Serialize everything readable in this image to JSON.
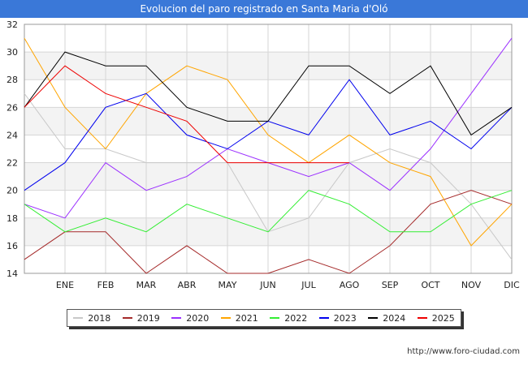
{
  "chart_data": {
    "type": "line",
    "title": "Evolucion del paro registrado en Santa Maria d'Oló",
    "categories": [
      "",
      "ENE",
      "FEB",
      "MAR",
      "ABR",
      "MAY",
      "JUN",
      "JUL",
      "AGO",
      "SEP",
      "OCT",
      "NOV",
      "DIC"
    ],
    "ylim": [
      14,
      32
    ],
    "yticks": [
      14,
      16,
      18,
      20,
      22,
      24,
      26,
      28,
      30,
      32
    ],
    "grid": true,
    "legend_position": "bottom",
    "series": [
      {
        "name": "2018",
        "color": "#c8c8c8",
        "values": [
          27,
          23,
          23,
          22,
          22,
          22,
          17,
          18,
          22,
          23,
          22,
          19,
          15
        ]
      },
      {
        "name": "2019",
        "color": "#a52a2a",
        "values": [
          15,
          17,
          17,
          14,
          16,
          14,
          14,
          15,
          14,
          16,
          19,
          20,
          19
        ]
      },
      {
        "name": "2020",
        "color": "#9b30ff",
        "values": [
          19,
          18,
          22,
          20,
          21,
          23,
          22,
          21,
          22,
          20,
          23,
          27,
          31
        ]
      },
      {
        "name": "2021",
        "color": "#ffa500",
        "values": [
          31,
          26,
          23,
          27,
          29,
          28,
          24,
          22,
          24,
          22,
          21,
          16,
          19
        ]
      },
      {
        "name": "2022",
        "color": "#33ee33",
        "values": [
          19,
          17,
          18,
          17,
          19,
          18,
          17,
          20,
          19,
          17,
          17,
          19,
          20
        ]
      },
      {
        "name": "2023",
        "color": "#0000ee",
        "values": [
          20,
          22,
          26,
          27,
          24,
          23,
          25,
          24,
          28,
          24,
          25,
          23,
          26
        ]
      },
      {
        "name": "2024",
        "color": "#000000",
        "values": [
          26,
          30,
          29,
          29,
          26,
          25,
          25,
          29,
          29,
          27,
          29,
          24,
          26
        ]
      },
      {
        "name": "2025",
        "color": "#ee0000",
        "values": [
          26,
          29,
          27,
          26,
          25,
          22,
          22,
          22,
          22,
          null,
          null,
          null,
          null
        ]
      }
    ]
  },
  "footer": {
    "url": "http://www.foro-ciudad.com"
  }
}
